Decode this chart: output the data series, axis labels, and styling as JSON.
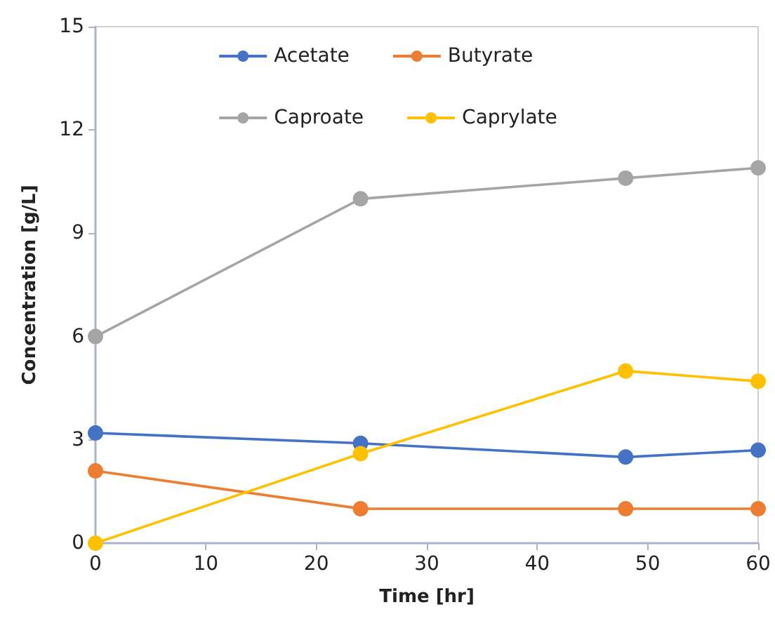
{
  "chart_data": {
    "type": "line",
    "xlabel": "Time [hr]",
    "ylabel": "Concentration [g/L]",
    "x": [
      0,
      24,
      48,
      60
    ],
    "series": [
      {
        "name": "Acetate",
        "color": "#4472c4",
        "values": [
          3.2,
          2.9,
          2.5,
          2.7
        ]
      },
      {
        "name": "Butyrate",
        "color": "#ed7d31",
        "values": [
          2.1,
          1.0,
          1.0,
          1.0
        ]
      },
      {
        "name": "Caproate",
        "color": "#a5a5a5",
        "values": [
          6.0,
          10.0,
          10.6,
          10.9
        ]
      },
      {
        "name": "Caprylate",
        "color": "#ffc000",
        "values": [
          0.0,
          2.6,
          5.0,
          4.7
        ]
      }
    ],
    "xlim": [
      0,
      60
    ],
    "xticks": [
      0,
      10,
      20,
      30,
      40,
      50,
      60
    ],
    "ylim": [
      0,
      15
    ],
    "yticks": [
      0,
      3,
      6,
      9,
      12,
      15
    ],
    "grid": false,
    "legend": "top",
    "marker": "circle",
    "line_style": "solid"
  }
}
